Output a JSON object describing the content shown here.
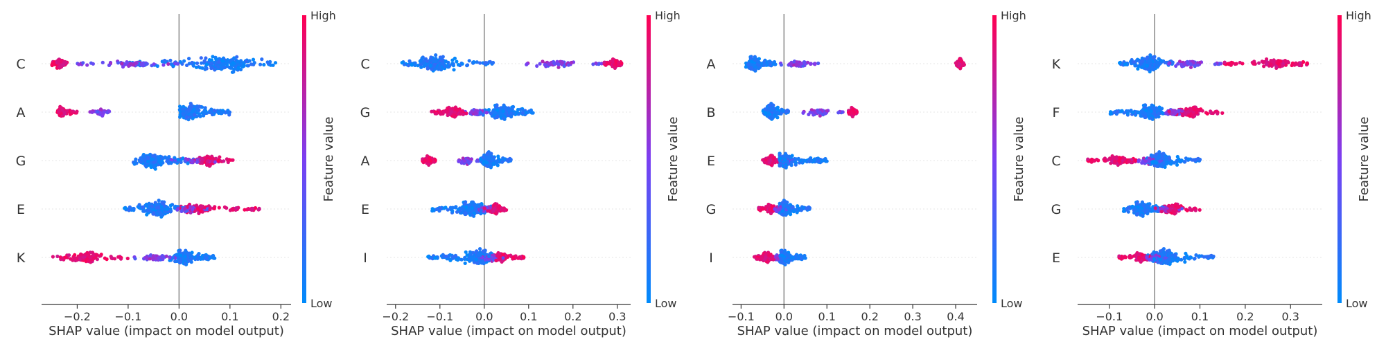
{
  "chart_data": [
    {
      "type": "scatter",
      "subtype": "beeswarm",
      "xlabel": "SHAP value (impact on model output)",
      "xlim": [
        -0.27,
        0.22
      ],
      "xticks": [
        -0.2,
        -0.1,
        0.0,
        0.1,
        0.2
      ],
      "xtick_labels": [
        "−0.2",
        "−0.1",
        "0.0",
        "0.1",
        "0.2"
      ],
      "features": [
        {
          "name": "C",
          "low_range": [
            -0.1,
            0.19
          ],
          "low_center": 0.09,
          "high_range": [
            -0.25,
            -0.22
          ],
          "high_center": -0.235,
          "mid_range": [
            -0.2,
            0.0
          ]
        },
        {
          "name": "A",
          "low_range": [
            0.0,
            0.1
          ],
          "low_center": 0.02,
          "high_range": [
            -0.24,
            -0.2
          ],
          "high_center": -0.23,
          "mid_range": [
            -0.18,
            -0.13
          ]
        },
        {
          "name": "G",
          "low_range": [
            -0.09,
            0.02
          ],
          "low_center": -0.05,
          "high_range": [
            0.02,
            0.11
          ],
          "high_center": 0.06,
          "mid_range": [
            -0.02,
            0.08
          ]
        },
        {
          "name": "E",
          "low_range": [
            -0.11,
            0.02
          ],
          "low_center": -0.04,
          "high_range": [
            0.0,
            0.16
          ],
          "high_center": 0.04,
          "mid_range": [
            -0.02,
            0.06
          ]
        },
        {
          "name": "K",
          "low_range": [
            -0.02,
            0.07
          ],
          "low_center": 0.01,
          "high_range": [
            -0.25,
            -0.1
          ],
          "high_center": -0.18,
          "mid_range": [
            -0.1,
            0.0
          ]
        }
      ]
    },
    {
      "type": "scatter",
      "subtype": "beeswarm",
      "xlabel": "SHAP value (impact on model output)",
      "xlim": [
        -0.22,
        0.33
      ],
      "xticks": [
        -0.2,
        -0.1,
        0.0,
        0.1,
        0.2,
        0.3
      ],
      "xtick_labels": [
        "−0.2",
        "−0.1",
        "0.0",
        "0.1",
        "0.2",
        "0.3"
      ],
      "features": [
        {
          "name": "C",
          "low_range": [
            -0.19,
            0.02
          ],
          "low_center": -0.11,
          "high_range": [
            0.27,
            0.31
          ],
          "high_center": 0.295,
          "mid_range": [
            0.05,
            0.27
          ]
        },
        {
          "name": "G",
          "low_range": [
            -0.02,
            0.11
          ],
          "low_center": 0.04,
          "high_range": [
            -0.12,
            -0.04
          ],
          "high_center": -0.07,
          "mid_range": [
            -0.05,
            0.01
          ]
        },
        {
          "name": "A",
          "low_range": [
            -0.01,
            0.06
          ],
          "low_center": 0.01,
          "high_range": [
            -0.14,
            -0.11
          ],
          "high_center": -0.125,
          "mid_range": [
            -0.07,
            -0.01
          ]
        },
        {
          "name": "E",
          "low_range": [
            -0.12,
            0.02
          ],
          "low_center": -0.03,
          "high_range": [
            0.0,
            0.05
          ],
          "high_center": 0.025,
          "mid_range": [
            -0.04,
            0.03
          ]
        },
        {
          "name": "I",
          "low_range": [
            -0.13,
            0.02
          ],
          "low_center": -0.01,
          "high_range": [
            0.02,
            0.09
          ],
          "high_center": 0.04,
          "mid_range": [
            -0.02,
            0.05
          ]
        }
      ]
    },
    {
      "type": "scatter",
      "subtype": "beeswarm",
      "xlabel": "SHAP value (impact on model output)",
      "xlim": [
        -0.12,
        0.45
      ],
      "xticks": [
        -0.1,
        0.0,
        0.1,
        0.2,
        0.3,
        0.4
      ],
      "xtick_labels": [
        "−0.1",
        "0.0",
        "0.1",
        "0.2",
        "0.3",
        "0.4"
      ],
      "features": [
        {
          "name": "A",
          "low_range": [
            -0.09,
            -0.02
          ],
          "low_center": -0.07,
          "high_range": [
            0.4,
            0.42
          ],
          "high_center": 0.41,
          "mid_range": [
            -0.02,
            0.08
          ]
        },
        {
          "name": "B",
          "low_range": [
            -0.05,
            0.01
          ],
          "low_center": -0.03,
          "high_range": [
            0.15,
            0.17
          ],
          "high_center": 0.16,
          "mid_range": [
            0.02,
            0.14
          ]
        },
        {
          "name": "E",
          "low_range": [
            -0.01,
            0.1
          ],
          "low_center": 0.0,
          "high_range": [
            -0.05,
            -0.01
          ],
          "high_center": -0.03,
          "mid_range": [
            -0.03,
            0.02
          ]
        },
        {
          "name": "G",
          "low_range": [
            -0.01,
            0.06
          ],
          "low_center": 0.0,
          "high_range": [
            -0.06,
            -0.01
          ],
          "high_center": -0.03,
          "mid_range": [
            -0.03,
            0.01
          ]
        },
        {
          "name": "I",
          "low_range": [
            -0.01,
            0.05
          ],
          "low_center": 0.0,
          "high_range": [
            -0.07,
            -0.02
          ],
          "high_center": -0.04,
          "mid_range": [
            -0.03,
            0.0
          ]
        }
      ]
    },
    {
      "type": "scatter",
      "subtype": "beeswarm",
      "xlabel": "SHAP value (impact on model output)",
      "xlim": [
        -0.17,
        0.37
      ],
      "xticks": [
        -0.1,
        0.0,
        0.1,
        0.2,
        0.3
      ],
      "xtick_labels": [
        "−0.1",
        "0.0",
        "0.1",
        "0.2",
        "0.3"
      ],
      "features": [
        {
          "name": "K",
          "low_range": [
            -0.08,
            0.04
          ],
          "low_center": -0.01,
          "high_range": [
            0.15,
            0.34
          ],
          "high_center": 0.27,
          "mid_range": [
            0.0,
            0.15
          ]
        },
        {
          "name": "F",
          "low_range": [
            -0.1,
            0.02
          ],
          "low_center": -0.01,
          "high_range": [
            0.03,
            0.15
          ],
          "high_center": 0.08,
          "mid_range": [
            0.0,
            0.08
          ]
        },
        {
          "name": "C",
          "low_range": [
            -0.02,
            0.1
          ],
          "low_center": 0.01,
          "high_range": [
            -0.15,
            -0.04
          ],
          "high_center": -0.08,
          "mid_range": [
            -0.05,
            0.02
          ]
        },
        {
          "name": "G",
          "low_range": [
            -0.07,
            0.02
          ],
          "low_center": -0.03,
          "high_range": [
            0.0,
            0.1
          ],
          "high_center": 0.04,
          "mid_range": [
            -0.01,
            0.06
          ]
        },
        {
          "name": "E",
          "low_range": [
            -0.02,
            0.13
          ],
          "low_center": 0.02,
          "high_range": [
            -0.08,
            -0.01
          ],
          "high_center": -0.03,
          "mid_range": [
            -0.03,
            0.03
          ]
        }
      ]
    }
  ],
  "colorbar": {
    "high_label": "High",
    "low_label": "Low",
    "title": "Feature value",
    "low_color": "#008bfb",
    "high_color": "#ff0052",
    "mid_color": "#7b3ff2"
  }
}
